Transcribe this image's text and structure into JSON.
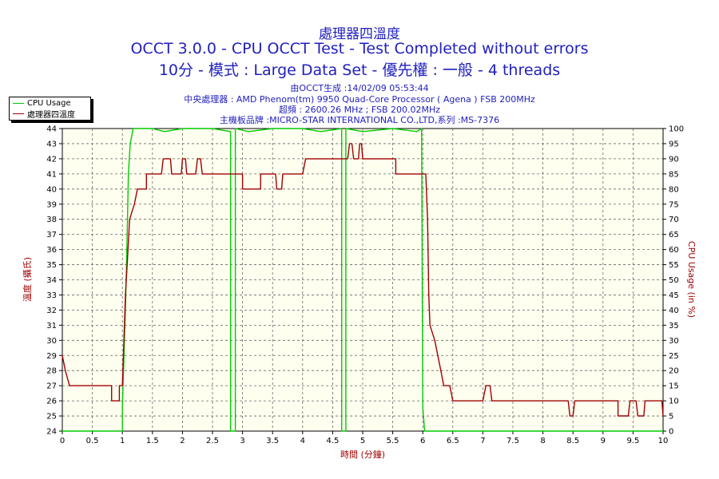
{
  "chart_data": {
    "type": "line",
    "title": "處理器四溫度",
    "subtitle_1": "OCCT 3.0.0 - CPU OCCT Test - Test Completed without errors",
    "subtitle_2": "10分 - 模式 : Large Data Set - 優先權 : 一般 - 4 threads",
    "info": [
      "由OCCT生成 :14/02/09 05:53:44",
      "中央處理器 : AMD Phenom(tm) 9950 Quad-Core Processor ( Agena ) FSB 200MHz",
      "超頻 : 2600.26 MHz ; FSB 200.02MHz",
      "主機板品牌 :MICRO-STAR INTERNATIONAL CO.,LTD,系列 :MS-7376"
    ],
    "xlabel": "時間 (分鐘)",
    "ylabel_left": "溫度 (攝氏)",
    "ylabel_right": "CPU Usage (in %)",
    "xlim": [
      0,
      10
    ],
    "ylim_left": [
      24,
      44
    ],
    "ylim_right": [
      0,
      100
    ],
    "x_ticks": [
      "0",
      "0.5",
      "1",
      "1.5",
      "2",
      "2.5",
      "3",
      "3.5",
      "4",
      "4.5",
      "5",
      "5.5",
      "6",
      "6.5",
      "7",
      "7.5",
      "8",
      "8.5",
      "9",
      "9.5",
      "10"
    ],
    "y_left_ticks": [
      "24",
      "25",
      "26",
      "27",
      "28",
      "29",
      "30",
      "31",
      "32",
      "33",
      "34",
      "35",
      "36",
      "37",
      "38",
      "39",
      "40",
      "41",
      "42",
      "43",
      "44"
    ],
    "y_right_ticks": [
      "0",
      "5",
      "10",
      "15",
      "20",
      "25",
      "30",
      "35",
      "40",
      "45",
      "50",
      "55",
      "60",
      "65",
      "70",
      "75",
      "80",
      "85",
      "90",
      "95",
      "100"
    ],
    "grid": true,
    "legend_position": "top-left",
    "series": [
      {
        "name": "CPU Usage",
        "axis": "right",
        "color": "#00cc00",
        "points": [
          [
            0,
            0
          ],
          [
            1.0,
            0
          ],
          [
            1.0,
            8
          ],
          [
            1.05,
            40
          ],
          [
            1.08,
            65
          ],
          [
            1.1,
            85
          ],
          [
            1.13,
            95
          ],
          [
            1.18,
            100
          ],
          [
            1.5,
            100
          ],
          [
            1.7,
            99
          ],
          [
            2.0,
            100
          ],
          [
            2.5,
            100
          ],
          [
            2.8,
            99
          ],
          [
            2.8,
            0
          ],
          [
            2.88,
            0
          ],
          [
            2.88,
            100
          ],
          [
            3.1,
            99
          ],
          [
            3.5,
            100
          ],
          [
            4.0,
            100
          ],
          [
            4.3,
            99
          ],
          [
            4.65,
            100
          ],
          [
            4.65,
            0
          ],
          [
            4.72,
            0
          ],
          [
            4.72,
            100
          ],
          [
            5.0,
            99
          ],
          [
            5.5,
            100
          ],
          [
            5.9,
            99
          ],
          [
            5.98,
            100
          ],
          [
            6.0,
            8
          ],
          [
            6.03,
            0
          ],
          [
            10,
            0
          ]
        ]
      },
      {
        "name": "處理器四溫度",
        "axis": "left",
        "color": "#a00000",
        "points": [
          [
            0,
            29
          ],
          [
            0.05,
            28
          ],
          [
            0.12,
            27
          ],
          [
            0.82,
            27
          ],
          [
            0.82,
            26
          ],
          [
            0.95,
            26
          ],
          [
            0.95,
            27
          ],
          [
            1.0,
            27
          ],
          [
            1.05,
            33
          ],
          [
            1.08,
            35
          ],
          [
            1.12,
            38
          ],
          [
            1.2,
            39
          ],
          [
            1.25,
            40
          ],
          [
            1.4,
            40
          ],
          [
            1.4,
            41
          ],
          [
            1.65,
            41
          ],
          [
            1.68,
            42
          ],
          [
            1.8,
            42
          ],
          [
            1.82,
            41
          ],
          [
            1.98,
            41
          ],
          [
            2.0,
            42
          ],
          [
            2.05,
            42
          ],
          [
            2.07,
            41
          ],
          [
            2.22,
            41
          ],
          [
            2.25,
            42
          ],
          [
            2.3,
            42
          ],
          [
            2.33,
            41
          ],
          [
            3.0,
            41
          ],
          [
            3.0,
            40
          ],
          [
            3.3,
            40
          ],
          [
            3.3,
            41
          ],
          [
            3.55,
            41
          ],
          [
            3.57,
            40
          ],
          [
            3.65,
            40
          ],
          [
            3.67,
            41
          ],
          [
            4.0,
            41
          ],
          [
            4.05,
            42
          ],
          [
            4.75,
            42
          ],
          [
            4.78,
            43
          ],
          [
            4.82,
            43
          ],
          [
            4.85,
            42
          ],
          [
            4.93,
            42
          ],
          [
            4.95,
            43
          ],
          [
            4.98,
            43
          ],
          [
            5.0,
            42
          ],
          [
            5.55,
            42
          ],
          [
            5.55,
            41
          ],
          [
            6.05,
            41
          ],
          [
            6.08,
            38
          ],
          [
            6.1,
            33
          ],
          [
            6.12,
            31
          ],
          [
            6.2,
            30
          ],
          [
            6.3,
            28
          ],
          [
            6.35,
            27
          ],
          [
            6.45,
            27
          ],
          [
            6.5,
            26
          ],
          [
            7.0,
            26
          ],
          [
            7.05,
            27
          ],
          [
            7.12,
            27
          ],
          [
            7.15,
            26
          ],
          [
            8.42,
            26
          ],
          [
            8.45,
            25
          ],
          [
            8.5,
            25
          ],
          [
            8.53,
            26
          ],
          [
            9.25,
            26
          ],
          [
            9.25,
            25
          ],
          [
            9.42,
            25
          ],
          [
            9.45,
            26
          ],
          [
            9.55,
            26
          ],
          [
            9.58,
            25
          ],
          [
            9.68,
            25
          ],
          [
            9.7,
            26
          ],
          [
            9.98,
            26
          ],
          [
            10,
            25
          ]
        ]
      }
    ]
  }
}
